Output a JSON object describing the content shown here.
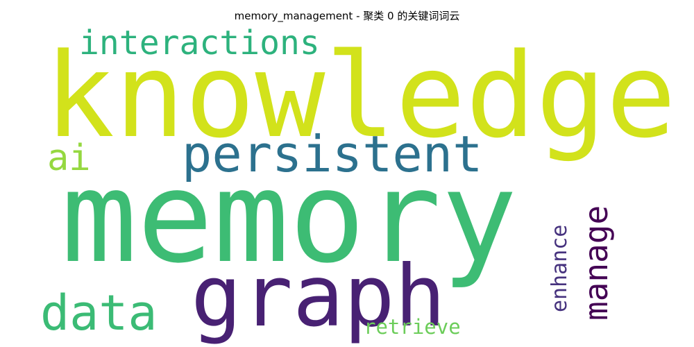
{
  "title": "memory_management - 聚类 0 的关键词词云",
  "words": {
    "memory": {
      "text": "memory",
      "color": "#3dbc74"
    },
    "knowledge": {
      "text": "knowledge",
      "color": "#d2e21b"
    },
    "graph": {
      "text": "graph",
      "color": "#482173"
    },
    "persistent": {
      "text": "persistent",
      "color": "#2c718e"
    },
    "interactions": {
      "text": "interactions",
      "color": "#2db27d"
    },
    "data": {
      "text": "data",
      "color": "#3bbb75"
    },
    "ai": {
      "text": "ai",
      "color": "#95d840"
    },
    "manage": {
      "text": "manage",
      "color": "#440154"
    },
    "enhance": {
      "text": "enhance",
      "color": "#46327e"
    },
    "retrieve": {
      "text": "retrieve",
      "color": "#6ccd5a"
    }
  }
}
